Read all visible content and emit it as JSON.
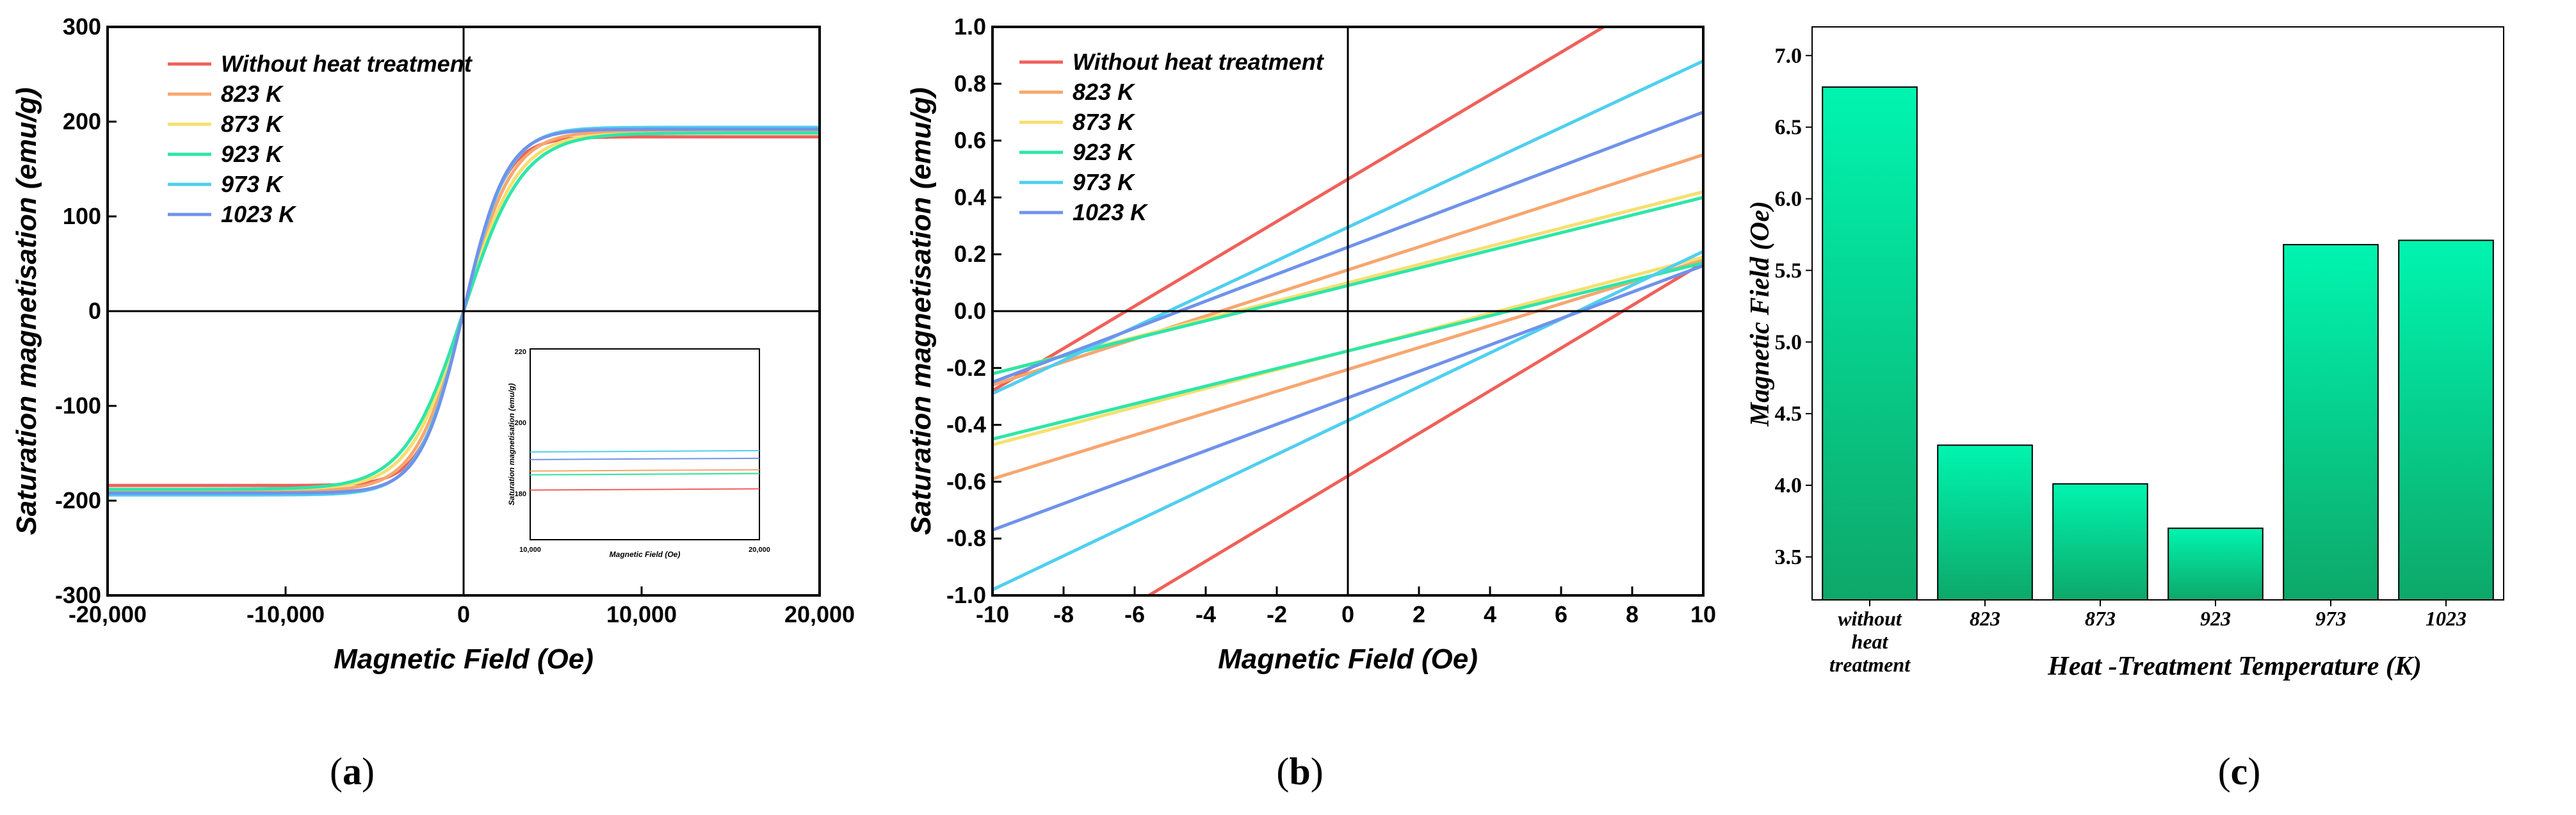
{
  "chart_data": [
    {
      "id": "a",
      "type": "line",
      "panel_label": {
        "open": "(",
        "letter": "a",
        "close": ")"
      },
      "xlabel": "Magnetic Field (Oe)",
      "ylabel": "Saturation magnetisation (emu/g)",
      "xlim": [
        -20000,
        20000
      ],
      "ylim": [
        -300,
        300
      ],
      "xticks": [
        -20000,
        -10000,
        0,
        10000,
        20000
      ],
      "xtick_labels": [
        "-20,000",
        "-10,000",
        "0",
        "10,000",
        "20,000"
      ],
      "yticks": [
        -300,
        -200,
        -100,
        0,
        100,
        200,
        300
      ],
      "ytick_labels": [
        "-300",
        "-200",
        "-100",
        "0",
        "100",
        "200",
        "300"
      ],
      "legend_position": "top-left",
      "series": [
        {
          "name": "Without heat treatment",
          "color": "#f0605a",
          "ms": 184,
          "hs": 2300
        },
        {
          "name": "823 K",
          "color": "#f7a66f",
          "ms": 190,
          "hs": 2700
        },
        {
          "name": "873 K",
          "color": "#f5e06e",
          "ms": 188,
          "hs": 3000
        },
        {
          "name": "923 K",
          "color": "#2ee6a8",
          "ms": 188,
          "hs": 3300
        },
        {
          "name": "973 K",
          "color": "#4fcff0",
          "ms": 194,
          "hs": 2500
        },
        {
          "name": "1023 K",
          "color": "#6f93ea",
          "ms": 192,
          "hs": 2400
        }
      ],
      "inset": {
        "xlabel": "Magnetic Field (Oe)",
        "ylabel": "Saturation magnetisation (emu/g)",
        "xtick_labels": [
          "10,000",
          "20,000"
        ],
        "ytick_labels": [
          "220",
          "200",
          "180"
        ],
        "xlim": [
          10000,
          20000
        ],
        "ylim": [
          170,
          220
        ],
        "levels": [
          183,
          188,
          187,
          187,
          193,
          191
        ]
      }
    },
    {
      "id": "b",
      "type": "line",
      "panel_label": {
        "open": "(",
        "letter": "b",
        "close": ")"
      },
      "xlabel": "Magnetic Field (Oe)",
      "ylabel": "Saturation magnetisation (emu/g)",
      "xlim": [
        -10,
        10
      ],
      "ylim": [
        -1.0,
        1.0
      ],
      "xticks": [
        -10,
        -8,
        -6,
        -4,
        -2,
        0,
        2,
        4,
        6,
        8,
        10
      ],
      "xtick_labels": [
        "-10",
        "-8",
        "-6",
        "-4",
        "-2",
        "0",
        "2",
        "4",
        "6",
        "8",
        "10"
      ],
      "yticks": [
        -1.0,
        -0.8,
        -0.6,
        -0.4,
        -0.2,
        0.0,
        0.2,
        0.4,
        0.6,
        0.8,
        1.0
      ],
      "ytick_labels": [
        "-1.0",
        "-0.8",
        "-0.6",
        "-0.4",
        "-0.2",
        "0.0",
        "0.2",
        "0.4",
        "0.6",
        "0.8",
        "1.0"
      ],
      "legend_position": "top-left",
      "series": [
        {
          "name": "Without heat treatment",
          "color": "#f0605a",
          "upper": [
            [
              -10,
              -0.28
            ],
            [
              7.2,
              1.0
            ]
          ],
          "lower": [
            [
              -5.6,
              -1.0
            ],
            [
              10,
              0.17
            ]
          ]
        },
        {
          "name": "823 K",
          "color": "#f7a66f",
          "upper": [
            [
              -10,
              -0.26
            ],
            [
              10,
              0.55
            ]
          ],
          "lower": [
            [
              -10,
              -0.59
            ],
            [
              10,
              0.18
            ]
          ]
        },
        {
          "name": "873 K",
          "color": "#f5e06e",
          "upper": [
            [
              -10,
              -0.22
            ],
            [
              10,
              0.42
            ]
          ],
          "lower": [
            [
              -10,
              -0.47
            ],
            [
              10,
              0.19
            ]
          ]
        },
        {
          "name": "923 K",
          "color": "#2ee6a8",
          "upper": [
            [
              -10,
              -0.22
            ],
            [
              10,
              0.4
            ]
          ],
          "lower": [
            [
              -10,
              -0.45
            ],
            [
              10,
              0.17
            ]
          ]
        },
        {
          "name": "973 K",
          "color": "#4fcff0",
          "upper": [
            [
              -10,
              -0.29
            ],
            [
              10,
              0.88
            ]
          ],
          "lower": [
            [
              -10,
              -0.98
            ],
            [
              10,
              0.21
            ]
          ]
        },
        {
          "name": "1023 K",
          "color": "#6f93ea",
          "upper": [
            [
              -10,
              -0.25
            ],
            [
              10,
              0.7
            ]
          ],
          "lower": [
            [
              -10,
              -0.77
            ],
            [
              10,
              0.16
            ]
          ]
        }
      ]
    },
    {
      "id": "c",
      "type": "bar",
      "panel_label": {
        "open": "(",
        "letter": "c",
        "close": ")"
      },
      "xlabel": "Heat -Treatment Temperature (K)",
      "ylabel": "Magnetic Field (Oe)",
      "categories": [
        [
          "without",
          "heat",
          "treatment"
        ],
        [
          "823"
        ],
        [
          "873"
        ],
        [
          "923"
        ],
        [
          "973"
        ],
        [
          "1023"
        ]
      ],
      "values": [
        6.78,
        4.28,
        4.01,
        3.7,
        5.68,
        5.71
      ],
      "ylim": [
        3.2,
        7.2
      ],
      "yticks": [
        3.5,
        4.0,
        4.5,
        5.0,
        5.5,
        6.0,
        6.5,
        7.0
      ],
      "ytick_labels": [
        "3.5",
        "4.0",
        "4.5",
        "5.0",
        "5.5",
        "6.0",
        "6.5",
        "7.0"
      ],
      "bar_color_top": "#00f5b0",
      "bar_color_bottom": "#0da869"
    }
  ]
}
